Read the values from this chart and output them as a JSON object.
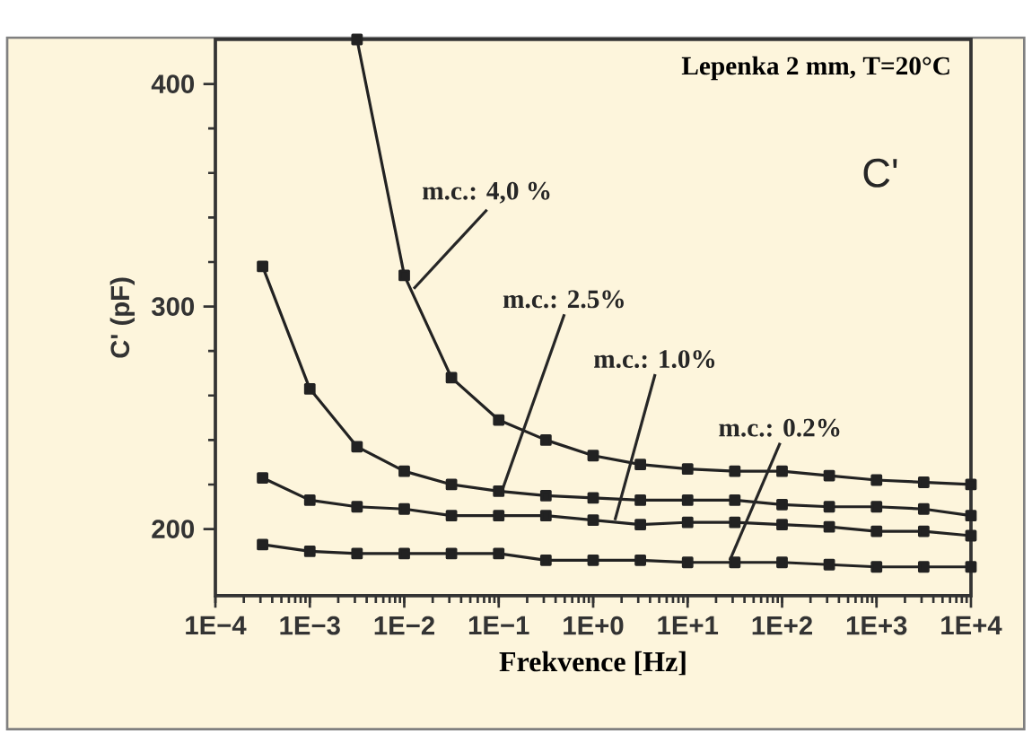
{
  "chart_data": {
    "type": "line",
    "title": "Lepenka 2 mm, T=20°C",
    "xlabel": "Frekvence [Hz]",
    "ylabel": "C' (pF)",
    "x": [
      0.000316,
      0.001,
      0.00316,
      0.01,
      0.0316,
      0.1,
      0.316,
      1,
      3.16,
      10,
      31.6,
      100,
      316,
      1000,
      3162,
      10000
    ],
    "series": [
      {
        "color": "#222222",
        "values": [
          null,
          null,
          420,
          314,
          268,
          249,
          240,
          233,
          229,
          227,
          226,
          226,
          224,
          222,
          221,
          220
        ]
      },
      {
        "color": "#222222",
        "values": [
          318,
          263,
          237,
          226,
          220,
          217,
          215,
          214,
          213,
          213,
          213,
          211,
          210,
          210,
          209,
          206
        ]
      },
      {
        "color": "#222222",
        "values": [
          223,
          213,
          210,
          209,
          206,
          206,
          206,
          204,
          202,
          203,
          203,
          202,
          201,
          199,
          199,
          197
        ]
      },
      {
        "color": "#222222",
        "values": [
          193,
          190,
          189,
          189,
          189,
          189,
          186,
          186,
          186,
          185,
          185,
          185,
          184,
          183,
          183,
          183
        ]
      }
    ],
    "annotations": [
      {
        "text": "m.c.: 4,0 %",
        "x": 0.0126,
        "y": 308
      },
      {
        "text": "m.c.: 2.5%",
        "x": 0.11,
        "y": 218
      },
      {
        "text": "m.c.: 1.0%",
        "x": 1.7,
        "y": 204
      },
      {
        "text": "m.c.: 0.2%",
        "x": 28,
        "y": 186
      },
      "C'"
    ],
    "log": "x",
    "marker": "square",
    "line_style": "solid",
    "xlim": [
      0.0001,
      10000
    ],
    "ylim": [
      170,
      420
    ],
    "xticks": [
      {
        "value": 0.0001,
        "label": "1E−4"
      },
      {
        "value": 0.001,
        "label": "1E−3"
      },
      {
        "value": 0.01,
        "label": "1E−2"
      },
      {
        "value": 0.1,
        "label": "1E−1"
      },
      {
        "value": 1,
        "label": "1E+0"
      },
      {
        "value": 10,
        "label": "1E+1"
      },
      {
        "value": 100,
        "label": "1E+2"
      },
      {
        "value": 1000,
        "label": "1E+3"
      },
      {
        "value": 10000,
        "label": "1E+4"
      }
    ],
    "yticks": [
      200,
      300,
      400
    ]
  }
}
